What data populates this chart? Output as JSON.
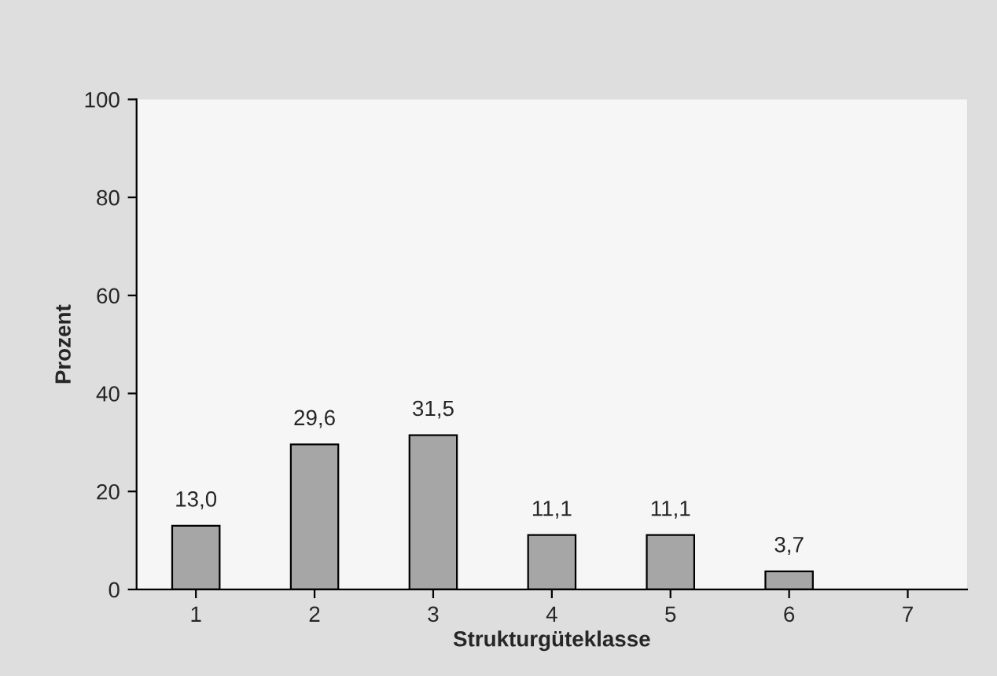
{
  "chart_data": {
    "type": "bar",
    "xlabel": "Strukturgüteklasse",
    "ylabel": "Prozent",
    "categories": [
      "1",
      "2",
      "3",
      "4",
      "5",
      "6",
      "7"
    ],
    "values": [
      13.0,
      29.6,
      31.5,
      11.1,
      11.1,
      3.7,
      null
    ],
    "value_labels": [
      "13,0",
      "29,6",
      "31,5",
      "11,1",
      "11,1",
      "3,7",
      null
    ],
    "color": "#a6a6a6",
    "ylim": [
      0,
      100
    ],
    "yticks": [
      0,
      20,
      40,
      60,
      80,
      100
    ],
    "grid": false,
    "legend": false
  }
}
